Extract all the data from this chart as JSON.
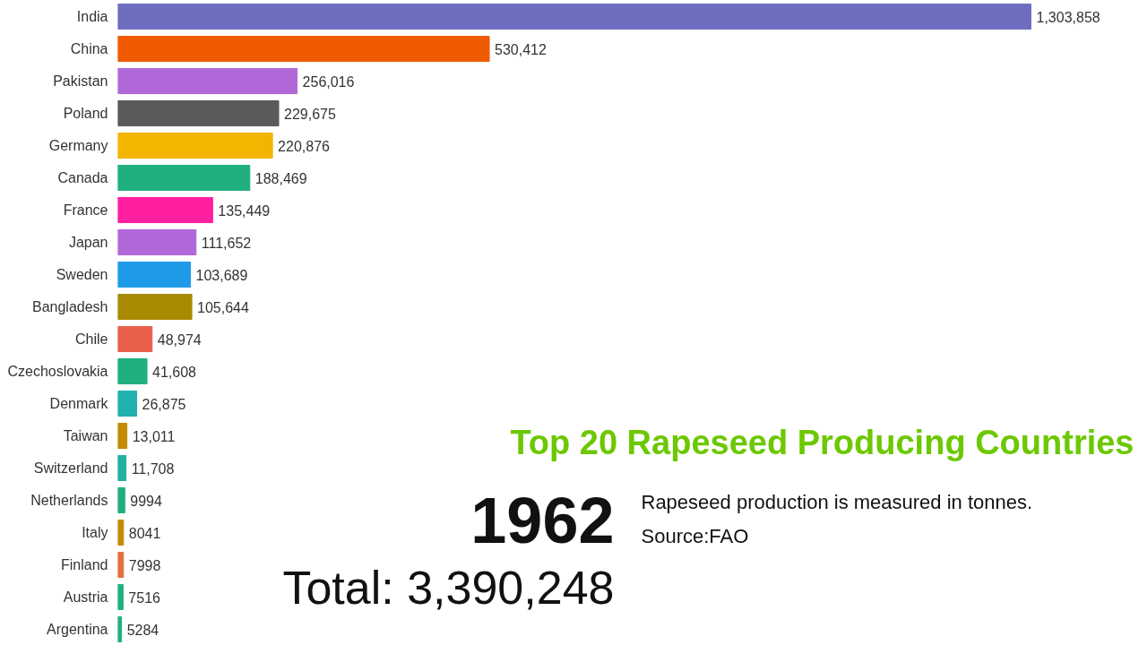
{
  "chart_data": {
    "type": "bar",
    "orientation": "horizontal",
    "title": "Top 20 Rapeseed Producing Countries",
    "categories": [
      "India",
      "China",
      "Pakistan",
      "Poland",
      "Germany",
      "Canada",
      "France",
      "Japan",
      "Sweden",
      "Bangladesh",
      "Chile",
      "Czechoslovakia",
      "Denmark",
      "Taiwan",
      "Switzerland",
      "Netherlands",
      "Italy",
      "Finland",
      "Austria",
      "Argentina"
    ],
    "values": [
      1303858,
      530412,
      256016,
      229675,
      220876,
      188469,
      135449,
      111652,
      103689,
      105644,
      48974,
      41608,
      26875,
      13011,
      11708,
      9994,
      8041,
      7998,
      7516,
      5284
    ],
    "value_labels": [
      "1,303,858",
      "530,412",
      "256,016",
      "229,675",
      "220,876",
      "188,469",
      "135,449",
      "111,652",
      "103,689",
      "105,644",
      "48,974",
      "41,608",
      "26,875",
      "13,011",
      "11,708",
      "9994",
      "8041",
      "7998",
      "7516",
      "5284"
    ],
    "colors": [
      "#6f6dbf",
      "#f05a00",
      "#b068d8",
      "#5a5a5a",
      "#f2b500",
      "#20b07f",
      "#ff1f9f",
      "#b068d8",
      "#1f9be8",
      "#a88a00",
      "#e8604c",
      "#20b07f",
      "#20b0b0",
      "#c48a00",
      "#20b0a0",
      "#20b07f",
      "#c48a00",
      "#e0703c",
      "#20b07f",
      "#20b07f"
    ],
    "annotations": [
      "1962",
      "Total: 3,390,248",
      "Rapeseed production is measured in tonnes.",
      "Source:FAO"
    ],
    "grid": false
  }
}
